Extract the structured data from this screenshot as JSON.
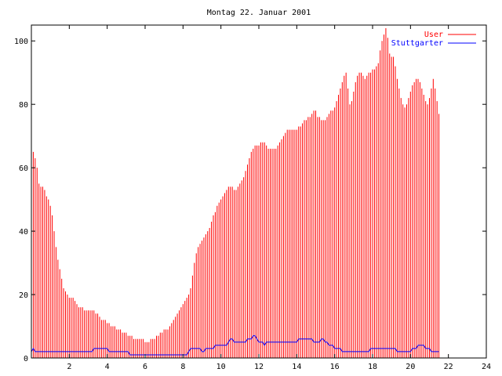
{
  "chart_data": {
    "type": "bar",
    "title": "Montag 22. Januar 2001",
    "xlabel": "",
    "ylabel": "",
    "xlim": [
      0,
      24
    ],
    "ylim": [
      0,
      105
    ],
    "grid": false,
    "legend_position": "top-right",
    "x_ticks": [
      2,
      4,
      6,
      8,
      10,
      12,
      14,
      16,
      18,
      20,
      22,
      24
    ],
    "x_tick_labels": [
      "2",
      "4",
      "6",
      "8",
      "10",
      "12",
      "14",
      "16",
      "18",
      "20",
      "22",
      "24"
    ],
    "y_ticks": [
      0,
      20,
      40,
      60,
      80,
      100
    ],
    "y_tick_labels": [
      "0",
      "20",
      "40",
      "60",
      "80",
      "100"
    ],
    "sample_interval_hours": 0.1,
    "series": [
      {
        "name": "User",
        "style": "impulses",
        "color": "#ff0000",
        "values": [
          70,
          65,
          63,
          60,
          55,
          54,
          54,
          53,
          51,
          50,
          48,
          45,
          40,
          35,
          31,
          28,
          25,
          22,
          21,
          20,
          19,
          19,
          19,
          18,
          17,
          16,
          16,
          16,
          15,
          15,
          15,
          15,
          15,
          15,
          14,
          14,
          13,
          12,
          12,
          12,
          11,
          11,
          10,
          10,
          10,
          9,
          9,
          9,
          8,
          8,
          8,
          7,
          7,
          7,
          6,
          6,
          6,
          6,
          6,
          6,
          5,
          5,
          5,
          6,
          6,
          6,
          7,
          7,
          8,
          8,
          9,
          9,
          9,
          10,
          11,
          12,
          13,
          14,
          15,
          16,
          17,
          18,
          19,
          20,
          22,
          26,
          30,
          33,
          35,
          36,
          37,
          38,
          39,
          40,
          41,
          43,
          45,
          46,
          48,
          49,
          50,
          51,
          52,
          53,
          54,
          54,
          54,
          53,
          53,
          54,
          55,
          56,
          57,
          59,
          61,
          63,
          65,
          66,
          67,
          67,
          67,
          68,
          68,
          68,
          67,
          66,
          66,
          66,
          66,
          66,
          67,
          68,
          69,
          70,
          71,
          72,
          72,
          72,
          72,
          72,
          72,
          73,
          73,
          74,
          75,
          75,
          76,
          76,
          77,
          78,
          78,
          76,
          76,
          75,
          75,
          75,
          76,
          77,
          78,
          78,
          79,
          81,
          83,
          85,
          87,
          89,
          90,
          85,
          80,
          81,
          84,
          87,
          89,
          90,
          90,
          89,
          88,
          89,
          90,
          90,
          91,
          91,
          92,
          93,
          97,
          100,
          102,
          104,
          101,
          96,
          95,
          95,
          92,
          88,
          85,
          82,
          80,
          79,
          80,
          82,
          84,
          86,
          87,
          88,
          88,
          87,
          85,
          83,
          81,
          80,
          82,
          85,
          88,
          85,
          81,
          77
        ],
        "data_labels": []
      },
      {
        "name": "Stuttgarter",
        "style": "lines",
        "color": "#0000ff",
        "values": [
          2,
          3,
          2,
          2,
          2,
          2,
          2,
          2,
          2,
          2,
          2,
          2,
          2,
          2,
          2,
          2,
          2,
          2,
          2,
          2,
          2,
          2,
          2,
          2,
          2,
          2,
          2,
          2,
          2,
          2,
          2,
          2,
          2,
          3,
          3,
          3,
          3,
          3,
          3,
          3,
          3,
          2,
          2,
          2,
          2,
          2,
          2,
          2,
          2,
          2,
          2,
          2,
          1,
          1,
          1,
          1,
          1,
          1,
          1,
          1,
          1,
          1,
          1,
          1,
          1,
          1,
          1,
          1,
          1,
          1,
          1,
          1,
          1,
          1,
          1,
          1,
          1,
          1,
          1,
          1,
          1,
          1,
          1,
          2,
          3,
          3,
          3,
          3,
          3,
          3,
          2,
          2,
          3,
          3,
          3,
          3,
          3,
          4,
          4,
          4,
          4,
          4,
          4,
          4,
          5,
          6,
          6,
          5,
          5,
          5,
          5,
          5,
          5,
          5,
          6,
          6,
          6,
          7,
          7,
          6,
          5,
          5,
          5,
          4,
          5,
          5,
          5,
          5,
          5,
          5,
          5,
          5,
          5,
          5,
          5,
          5,
          5,
          5,
          5,
          5,
          5,
          6,
          6,
          6,
          6,
          6,
          6,
          6,
          6,
          5,
          5,
          5,
          5,
          6,
          6,
          5,
          5,
          4,
          4,
          4,
          3,
          3,
          3,
          3,
          2,
          2,
          2,
          2,
          2,
          2,
          2,
          2,
          2,
          2,
          2,
          2,
          2,
          2,
          2,
          3,
          3,
          3,
          3,
          3,
          3,
          3,
          3,
          3,
          3,
          3,
          3,
          3,
          3,
          2,
          2,
          2,
          2,
          2,
          2,
          2,
          2,
          3,
          3,
          3,
          4,
          4,
          4,
          4,
          3,
          3,
          3,
          2,
          2,
          2,
          2,
          2
        ]
      }
    ]
  }
}
